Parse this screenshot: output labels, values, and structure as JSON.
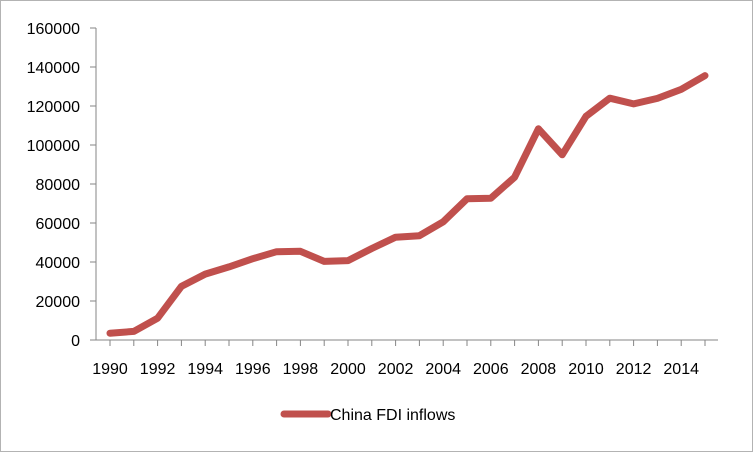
{
  "chart_data": {
    "type": "line",
    "title": "",
    "xlabel": "",
    "ylabel": "",
    "x": [
      1990,
      1991,
      1992,
      1993,
      1994,
      1995,
      1996,
      1997,
      1998,
      1999,
      2000,
      2001,
      2002,
      2003,
      2004,
      2005,
      2006,
      2007,
      2008,
      2009,
      2010,
      2011,
      2012,
      2013,
      2014,
      2015
    ],
    "series": [
      {
        "name": "China FDI inflows",
        "color": "#c0504d",
        "values": [
          3500,
          4400,
          11200,
          27500,
          33800,
          37500,
          41700,
          45300,
          45500,
          40300,
          40700,
          46900,
          52700,
          53500,
          60600,
          72400,
          72700,
          83500,
          108300,
          95000,
          114700,
          124000,
          121100,
          123900,
          128500,
          135600
        ]
      }
    ],
    "ylim": [
      0,
      160000
    ],
    "xlim": [
      1990,
      2015
    ],
    "y_ticks": [
      "0",
      "20000",
      "40000",
      "60000",
      "80000",
      "100000",
      "120000",
      "140000",
      "160000"
    ],
    "x_ticks": [
      "1990",
      "1992",
      "1994",
      "1996",
      "1998",
      "2000",
      "2002",
      "2004",
      "2006",
      "2008",
      "2010",
      "2012",
      "2014"
    ],
    "grid": false,
    "legend_position": "bottom"
  }
}
